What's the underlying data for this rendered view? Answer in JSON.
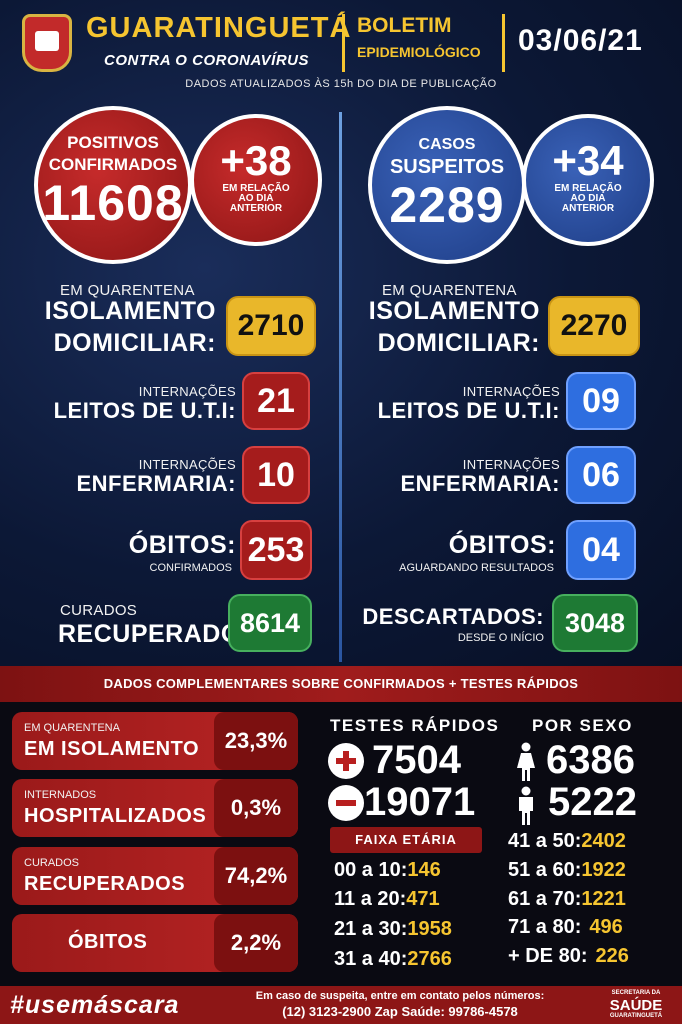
{
  "header": {
    "city": "GUARATINGUETÁ",
    "subtitle": "CONTRA O CORONAVÍRUS",
    "bulletin_line1": "BOLETIM",
    "bulletin_line2": "EPIDEMIOLÓGICO",
    "date": "03/06/21",
    "updated_note": "DADOS ATUALIZADOS ÀS 15h DO DIA DE PUBLICAÇÃO"
  },
  "confirmed": {
    "label_line1": "POSITIVOS",
    "label_line2": "CONFIRMADOS",
    "total": "11608",
    "delta": "+38",
    "delta_note_line1": "EM RELAÇÃO",
    "delta_note_line2": "AO DIA",
    "delta_note_line3": "ANTERIOR",
    "quarantine_label": "EM QUARENTENA",
    "isolation_line1": "ISOLAMENTO",
    "isolation_line2": "DOMICILIAR:",
    "isolation_value": "2710",
    "icu_small": "INTERNAÇÕES",
    "icu_label": "LEITOS DE U.T.I:",
    "icu_value": "21",
    "ward_small": "INTERNAÇÕES",
    "ward_label": "ENFERMARIA:",
    "ward_value": "10",
    "deaths_label": "ÓBITOS:",
    "deaths_small": "CONFIRMADOS",
    "deaths_value": "253",
    "cured_small": "CURADOS",
    "cured_label": "RECUPERADOS:",
    "cured_value": "8614"
  },
  "suspected": {
    "label_line1": "CASOS",
    "label_line2": "SUSPEITOS",
    "total": "2289",
    "delta": "+34",
    "delta_note_line1": "EM RELAÇÃO",
    "delta_note_line2": "AO DIA",
    "delta_note_line3": "ANTERIOR",
    "quarantine_label": "EM QUARENTENA",
    "isolation_line1": "ISOLAMENTO",
    "isolation_line2": "DOMICILIAR:",
    "isolation_value": "2270",
    "icu_small": "INTERNAÇÕES",
    "icu_label": "LEITOS DE U.T.I:",
    "icu_value": "09",
    "ward_small": "INTERNAÇÕES",
    "ward_label": "ENFERMARIA:",
    "ward_value": "06",
    "deaths_label": "ÓBITOS:",
    "deaths_small": "AGUARDANDO RESULTADOS",
    "deaths_value": "04",
    "discarded_label": "DESCARTADOS:",
    "discarded_small": "DESDE O INÍCIO",
    "discarded_value": "3048"
  },
  "complementary": {
    "banner": "DADOS COMPLEMENTARES SOBRE CONFIRMADOS + TESTES RÁPIDOS",
    "percentages": [
      {
        "small": "EM QUARENTENA",
        "label": "EM ISOLAMENTO",
        "value": "23,3%"
      },
      {
        "small": "INTERNADOS",
        "label": "HOSPITALIZADOS",
        "value": "0,3%"
      },
      {
        "small": "CURADOS",
        "label": "RECUPERADOS",
        "value": "74,2%"
      },
      {
        "small": "",
        "label": "ÓBITOS",
        "value": "2,2%"
      }
    ],
    "rapid_tests_title": "TESTES RÁPIDOS",
    "rapid_positive": "7504",
    "rapid_negative": "19071",
    "sex_title": "POR SEXO",
    "female": "6386",
    "male": "5222",
    "age_title": "FAIXA ETÁRIA",
    "ages_left": [
      {
        "range": "00 a 10:",
        "value": "146"
      },
      {
        "range": "11 a 20:",
        "value": "471"
      },
      {
        "range": "21 a 30:",
        "value": "1958"
      },
      {
        "range": "31 a 40:",
        "value": "2766"
      }
    ],
    "ages_right": [
      {
        "range": "41 a 50:",
        "value": "2402"
      },
      {
        "range": "51 a 60:",
        "value": "1922"
      },
      {
        "range": "61 a 70:",
        "value": "1221"
      },
      {
        "range": "71 a 80:",
        "value": "496"
      },
      {
        "range": "+ DE 80:",
        "value": "226"
      }
    ]
  },
  "footer": {
    "hashtag": "#usemáscara",
    "contact_line1": "Em caso de suspeita, entre em contato pelos números:",
    "contact_line2": "(12) 3123-2900 Zap Saúde: 99786-4578",
    "secretaria_line1": "SECRETARIA DA",
    "secretaria_line2": "SAÚDE",
    "secretaria_line3": "GUARATINGUETÁ"
  },
  "colors": {
    "accent_yellow": "#f6c530",
    "confirmed_red": "#a51c1c",
    "suspected_blue": "#2e6ee0",
    "cured_green": "#1e7a34"
  }
}
